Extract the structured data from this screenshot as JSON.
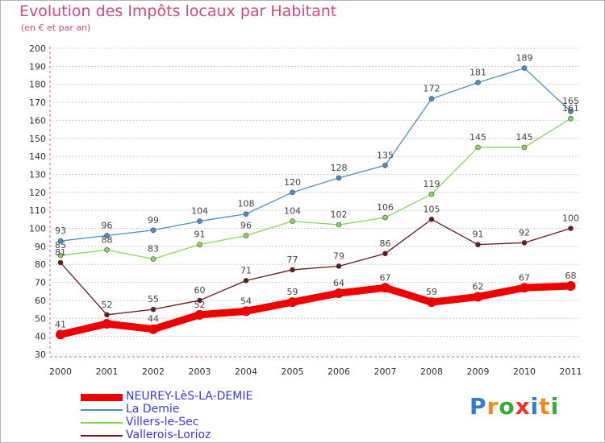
{
  "header": {
    "title": "Evolution des Impôts locaux par Habitant",
    "subtitle": "(en € et par an)"
  },
  "logo": {
    "text": "Proxiti"
  },
  "colors": {
    "title": "#d64a7a",
    "axis": "#e05a8a",
    "grid": "#cccccc",
    "legend_text": "#3a3ae0"
  },
  "chart_data": {
    "type": "line",
    "x": [
      "2000",
      "2001",
      "2002",
      "2003",
      "2004",
      "2005",
      "2006",
      "2007",
      "2008",
      "2009",
      "2010",
      "2011"
    ],
    "ylim": [
      30,
      200
    ],
    "yticks": [
      30,
      40,
      50,
      60,
      70,
      80,
      90,
      100,
      110,
      120,
      130,
      140,
      150,
      160,
      170,
      180,
      190,
      200
    ],
    "grid": "horizontal dashed",
    "legend_position": "bottom-left",
    "series": [
      {
        "name": "NEUREY-LèS-LA-DEMIE",
        "color": "#ee0000",
        "values": [
          41,
          47,
          44,
          52,
          54,
          59,
          64,
          67,
          59,
          62,
          67,
          68
        ],
        "labels": [
          "41",
          "",
          "44",
          "52",
          "54",
          "59",
          "64",
          "67",
          "59",
          "62",
          "67",
          "68"
        ]
      },
      {
        "name": "La Demie",
        "color": "#4a90c8",
        "values": [
          93,
          96,
          99,
          104,
          108,
          120,
          128,
          135,
          172,
          181,
          189,
          165
        ],
        "labels": [
          "93",
          "96",
          "99",
          "104",
          "108",
          "120",
          "128",
          "135",
          "172",
          "181",
          "189",
          "165"
        ]
      },
      {
        "name": "Villers-le-Sec",
        "color": "#88d858",
        "values": [
          85,
          88,
          83,
          91,
          96,
          104,
          102,
          106,
          119,
          145,
          145,
          161
        ],
        "labels": [
          "85",
          "88",
          "83",
          "91",
          "96",
          "104",
          "102",
          "106",
          "119",
          "145",
          "145",
          "161"
        ]
      },
      {
        "name": "Vallerois-Lorioz",
        "color": "#6a1818",
        "values": [
          81,
          52,
          55,
          60,
          71,
          77,
          79,
          86,
          105,
          91,
          92,
          100
        ],
        "labels": [
          "81",
          "52",
          "55",
          "60",
          "71",
          "77",
          "79",
          "86",
          "105",
          "91",
          "92",
          "100"
        ]
      }
    ]
  }
}
